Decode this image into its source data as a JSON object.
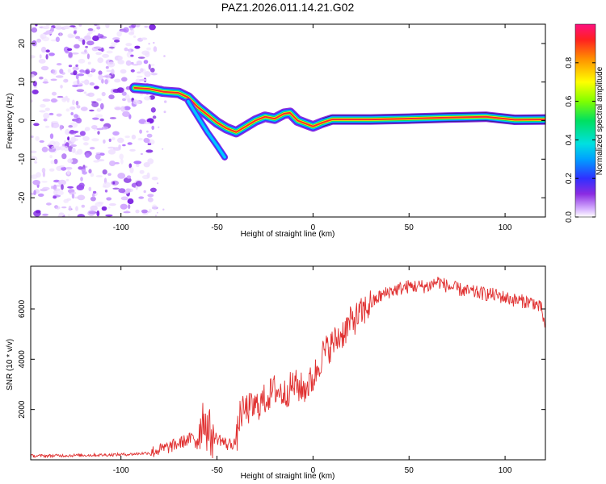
{
  "title": "PAZ1.2026.011.14.21.G02",
  "chart_data": [
    {
      "type": "heatmap",
      "name": "spectrogram",
      "xlabel": "Height of straight line (km)",
      "ylabel": "Frequency (Hz)",
      "xlim": [
        -147,
        121
      ],
      "ylim": [
        -25,
        25
      ],
      "xticks": [
        -100,
        -50,
        0,
        50,
        100
      ],
      "yticks": [
        -20,
        -10,
        0,
        10,
        20
      ],
      "ridge": [
        {
          "x": -93,
          "y": 8.5
        },
        {
          "x": -85,
          "y": 8.2
        },
        {
          "x": -78,
          "y": 7.5
        },
        {
          "x": -70,
          "y": 7.2
        },
        {
          "x": -65,
          "y": 6.0
        },
        {
          "x": -60,
          "y": 3.5
        },
        {
          "x": -55,
          "y": 1.5
        },
        {
          "x": -50,
          "y": -0.5
        },
        {
          "x": -45,
          "y": -2.0
        },
        {
          "x": -40,
          "y": -3.0
        },
        {
          "x": -35,
          "y": -1.5
        },
        {
          "x": -30,
          "y": 0.0
        },
        {
          "x": -25,
          "y": 1.0
        },
        {
          "x": -20,
          "y": 0.5
        },
        {
          "x": -15,
          "y": 1.8
        },
        {
          "x": -12,
          "y": 2.0
        },
        {
          "x": -8,
          "y": 0.0
        },
        {
          "x": 0,
          "y": -1.5
        },
        {
          "x": 5,
          "y": -0.5
        },
        {
          "x": 10,
          "y": 0.3
        },
        {
          "x": 30,
          "y": 0.3
        },
        {
          "x": 50,
          "y": 0.5
        },
        {
          "x": 70,
          "y": 0.8
        },
        {
          "x": 90,
          "y": 1.0
        },
        {
          "x": 105,
          "y": 0.2
        },
        {
          "x": 121,
          "y": 0.3
        }
      ],
      "branch": [
        {
          "x": -65,
          "y": 5.0
        },
        {
          "x": -60,
          "y": 1.0
        },
        {
          "x": -55,
          "y": -3.0
        },
        {
          "x": -50,
          "y": -6.5
        },
        {
          "x": -46,
          "y": -9.5
        }
      ],
      "noise_region_xmax": -88,
      "colorbar": {
        "label": "Normalized spectral amplitude",
        "range": [
          0,
          1
        ],
        "ticks": [
          "0.0",
          "0.2",
          "0.4",
          "0.6",
          "0.8"
        ]
      }
    },
    {
      "type": "line",
      "name": "snr",
      "xlabel": "Height of straight line (km)",
      "ylabel": "SNR (10 * v/v)",
      "xlim": [
        -147,
        121
      ],
      "ylim": [
        0,
        7700
      ],
      "xticks": [
        -100,
        -50,
        0,
        50,
        100
      ],
      "yticks": [
        2000,
        4000,
        6000
      ],
      "color": "#e03030",
      "x": [
        -147,
        -130,
        -110,
        -95,
        -85,
        -80,
        -75,
        -70,
        -65,
        -60,
        -57,
        -55,
        -52,
        -48,
        -45,
        -40,
        -38,
        -35,
        -30,
        -25,
        -20,
        -15,
        -10,
        -5,
        0,
        5,
        10,
        15,
        20,
        25,
        30,
        35,
        40,
        45,
        50,
        55,
        60,
        65,
        70,
        75,
        80,
        85,
        90,
        95,
        100,
        105,
        110,
        115,
        119,
        121
      ],
      "values": [
        150,
        170,
        190,
        220,
        280,
        400,
        500,
        650,
        800,
        950,
        1800,
        1200,
        900,
        800,
        600,
        700,
        1800,
        2000,
        2100,
        2400,
        2800,
        2600,
        3000,
        2800,
        3200,
        4200,
        4600,
        5000,
        5500,
        5800,
        6200,
        6500,
        6700,
        6800,
        6900,
        6900,
        6900,
        7100,
        6900,
        6800,
        6700,
        6650,
        6600,
        6550,
        6450,
        6350,
        6300,
        6250,
        6000,
        5200
      ]
    }
  ]
}
